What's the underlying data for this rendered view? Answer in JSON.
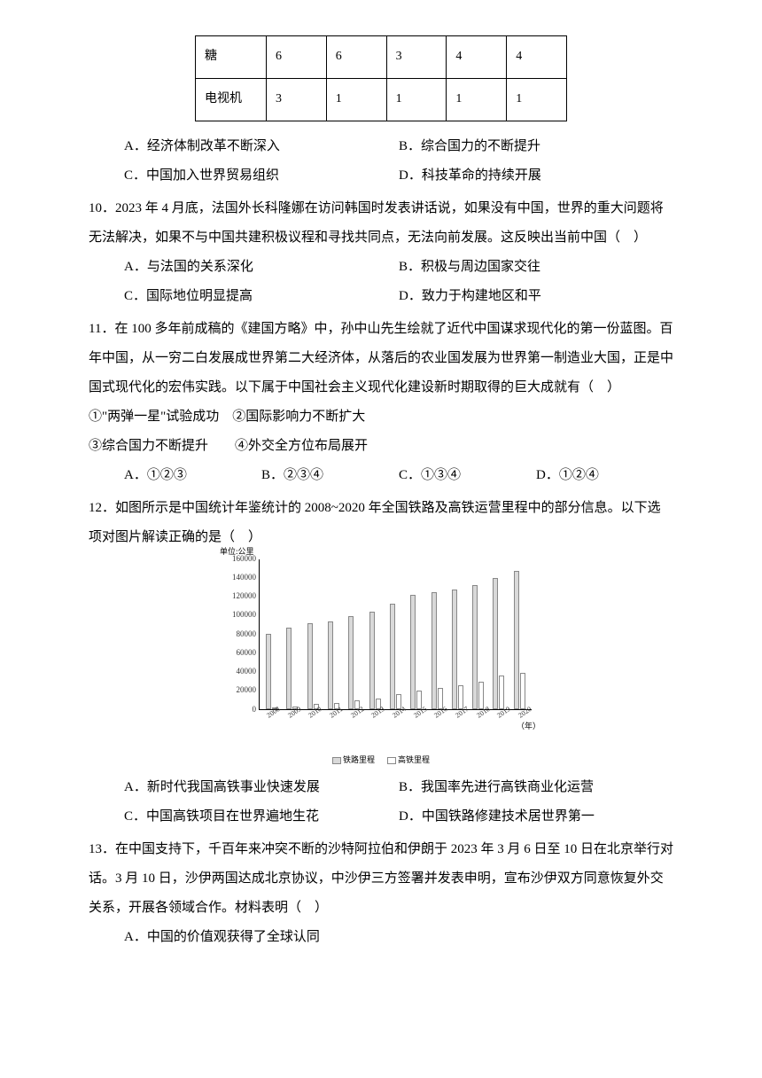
{
  "table": {
    "rows": [
      [
        "糖",
        "6",
        "6",
        "3",
        "4",
        "4"
      ],
      [
        "电视机",
        "3",
        "1",
        "1",
        "1",
        "1"
      ]
    ]
  },
  "q9_choices": {
    "a": "A．经济体制改革不断深入",
    "b": "B．综合国力的不断提升",
    "c": "C．中国加入世界贸易组织",
    "d": "D．科技革命的持续开展"
  },
  "q10": {
    "stem": "10．2023 年 4 月底，法国外长科隆娜在访问韩国时发表讲话说，如果没有中国，世界的重大问题将无法解决，如果不与中国共建积极议程和寻找共同点，无法向前发展。这反映出当前中国（　）",
    "a": "A．与法国的关系深化",
    "b": "B．积极与周边国家交往",
    "c": "C．国际地位明显提高",
    "d": "D．致力于构建地区和平"
  },
  "q11": {
    "stem": "11．在 100 多年前成稿的《建国方略》中，孙中山先生绘就了近代中国谋求现代化的第一份蓝图。百年中国，从一穷二白发展成世界第二大经济体，从落后的农业国发展为世界第一制造业大国，正是中国式现代化的宏伟实践。以下属于中国社会主义现代化建设新时期取得的巨大成就有（　）",
    "line1": "①\"两弹一星\"试验成功　②国际影响力不断扩大",
    "line2": "③综合国力不断提升　　④外交全方位布局展开",
    "a": "A．①②③",
    "b": "B．②③④",
    "c": "C．①③④",
    "d": "D．①②④"
  },
  "q12": {
    "stem": "12．如图所示是中国统计年鉴统计的 2008~2020 年全国铁路及高铁运营里程中的部分信息。以下选项对图片解读正确的是（　）",
    "a": "A．新时代我国高铁事业快速发展",
    "b": "B．我国率先进行高铁商业化运营",
    "c": "C．中国高铁项目在世界遍地生花",
    "d": "D．中国铁路修建技术居世界第一"
  },
  "q13": {
    "stem": "13．在中国支持下，千百年来冲突不断的沙特阿拉伯和伊朗于 2023 年 3 月 6 日至 10 日在北京举行对话。3 月 10 日，沙伊两国达成北京协议，中沙伊三方签署并发表申明，宣布沙伊双方同意恢复外交关系，开展各领域合作。材料表明（　）",
    "a": "A．中国的价值观获得了全球认同"
  },
  "chart": {
    "type": "bar",
    "ytitle": "单位:公里",
    "ymax": 160000,
    "ytick_step": 20000,
    "yticks": [
      0,
      20000,
      40000,
      60000,
      80000,
      100000,
      120000,
      140000,
      160000
    ],
    "years": [
      "2008",
      "2009",
      "2010",
      "2011",
      "2012",
      "2013",
      "2014",
      "2015",
      "2016",
      "2017",
      "2018",
      "2019",
      "2020"
    ],
    "rail": [
      80000,
      86000,
      91000,
      93000,
      98000,
      103000,
      112000,
      121000,
      124000,
      127000,
      131000,
      139000,
      146000
    ],
    "hsr": [
      700,
      2800,
      5200,
      6600,
      9400,
      11000,
      16000,
      19000,
      22000,
      25000,
      29000,
      35000,
      38000
    ],
    "bar_colors": [
      "#d9d9d9",
      "#ffffff"
    ],
    "border_color": "#888888",
    "background_color": "#ffffff",
    "xaxis_suffix": "（年）",
    "legend": [
      "铁路里程",
      "高铁里程"
    ]
  }
}
